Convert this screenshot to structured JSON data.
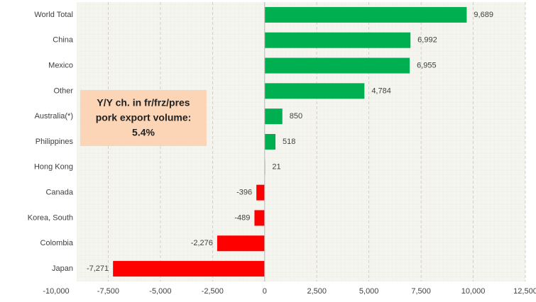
{
  "chart_data": {
    "type": "barh",
    "categories": [
      "World Total",
      "China",
      "Mexico",
      "Other",
      "Australia(*)",
      "Philippines",
      "Hong Kong",
      "Canada",
      "Korea, South",
      "Colombia",
      "Japan"
    ],
    "values": [
      9689,
      6992,
      6955,
      4784,
      850,
      518,
      21,
      -396,
      -489,
      -2276,
      -7271
    ],
    "value_labels": [
      "9,689",
      "6,992",
      "6,955",
      "4,784",
      "850",
      "518",
      "21",
      "-396",
      "-489",
      "-2,276",
      "-7,271"
    ],
    "colors": [
      "#00b050",
      "#00b050",
      "#00b050",
      "#00b050",
      "#00b050",
      "#00b050",
      "#00b050",
      "#ff0000",
      "#ff0000",
      "#ff0000",
      "#ff0000"
    ],
    "xlim": [
      -10000,
      12500
    ],
    "xticks": [
      {
        "value": -10000,
        "label": "-10,000"
      },
      {
        "value": -7500,
        "label": "-7,500"
      },
      {
        "value": -5000,
        "label": "-5,000"
      },
      {
        "value": -2500,
        "label": "-2,500"
      },
      0,
      {
        "value": 2500,
        "label": "2,500"
      },
      {
        "value": 5000,
        "label": "5,000"
      },
      {
        "value": 7500,
        "label": "7,500"
      },
      {
        "value": 10000,
        "label": "10,000"
      },
      {
        "value": 12500,
        "label": "12,500"
      }
    ],
    "grid": true,
    "annotation": [
      "Y/Y ch. in fr/frz/pres",
      "pork export volume:",
      "5.4%"
    ]
  }
}
